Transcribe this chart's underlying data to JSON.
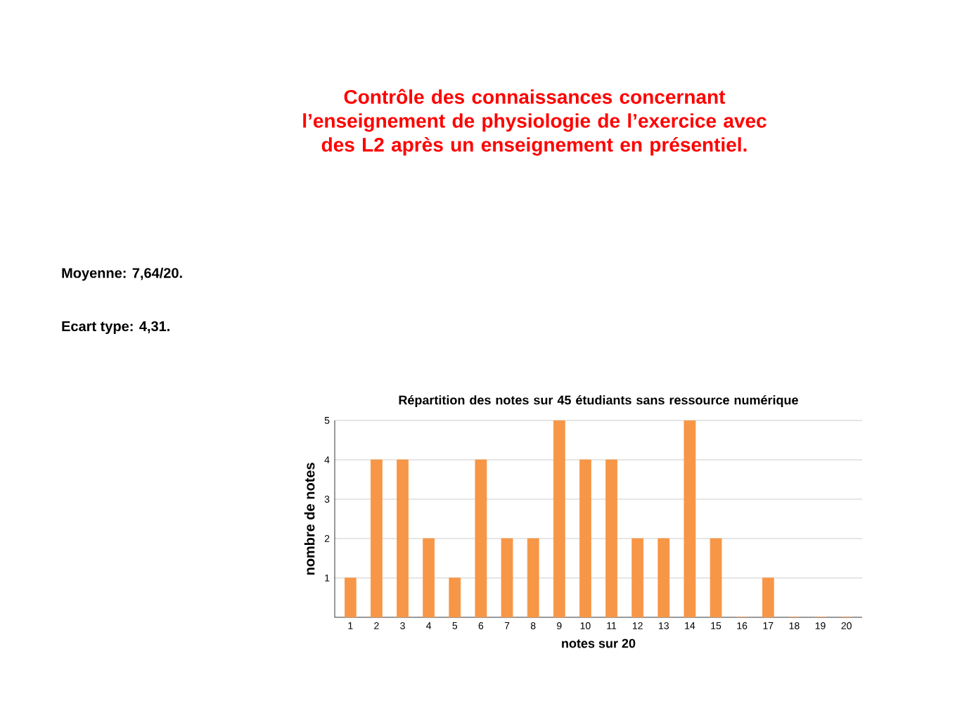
{
  "chart_data": {
    "type": "bar",
    "title": "Contrôle des connaissances concernant l’enseignement de physiologie de l’exercice avec des L2 après un enseignement en présentiel.",
    "subtitle": "Répartition des notes sur 45 étudiants sans ressource numérique",
    "xlabel": "notes sur 20",
    "ylabel": "nombre de notes",
    "categories": [
      "1",
      "2",
      "3",
      "4",
      "5",
      "6",
      "7",
      "8",
      "9",
      "10",
      "11",
      "12",
      "13",
      "14",
      "15",
      "16",
      "17",
      "18",
      "19",
      "20"
    ],
    "values": [
      1,
      4,
      4,
      2,
      1,
      4,
      2,
      2,
      5,
      4,
      4,
      2,
      2,
      5,
      2,
      0,
      1,
      0,
      0,
      0
    ],
    "color": "#f79646",
    "ylim": [
      0,
      5
    ],
    "yticks": [
      1,
      2,
      3,
      4,
      5
    ],
    "grid": "y",
    "annotations": [
      "Moyenne: 7,64/20.",
      "Ecart type: 4,31."
    ]
  }
}
